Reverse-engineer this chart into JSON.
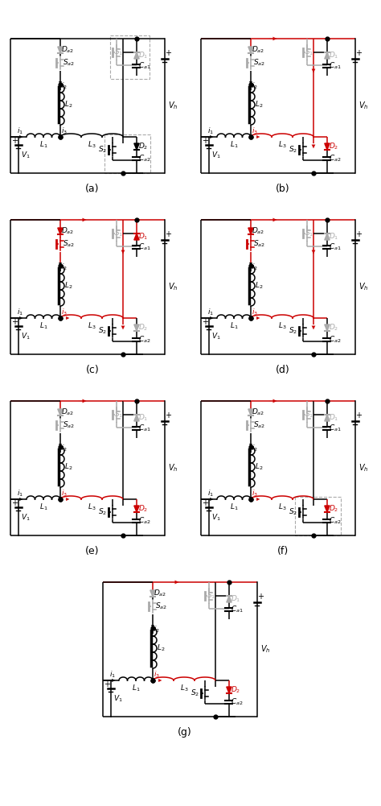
{
  "subfig_labels": [
    "(a)",
    "(b)",
    "(c)",
    "(d)",
    "(e)",
    "(f)",
    "(g)"
  ],
  "background_color": "#ffffff",
  "line_color": "#000000",
  "red_color": "#cc0000",
  "gray_color": "#aaaaaa",
  "panels": [
    {
      "ox": 5,
      "oy": 30,
      "dashed_top": true,
      "dashed_bottom": true,
      "red_top": false,
      "red_mid": false,
      "red_left_col": false,
      "red_right_col": false,
      "active_Da2": false,
      "active_Sa2": false,
      "active_D1": false,
      "active_D2": false,
      "gray_S1": true,
      "gray_D1": true,
      "gray_S2": false,
      "gray_D2": false,
      "gray_Sa2": true,
      "gray_Da2": true
    },
    {
      "ox": 242,
      "oy": 30,
      "dashed_top": false,
      "dashed_bottom": false,
      "red_top": true,
      "red_mid": true,
      "red_left_col": false,
      "red_right_col": true,
      "active_Da2": false,
      "active_Sa2": false,
      "active_D1": false,
      "active_D2": true,
      "gray_S1": true,
      "gray_D1": true,
      "gray_S2": true,
      "gray_D2": false,
      "gray_Sa2": true,
      "gray_Da2": true
    },
    {
      "ox": 5,
      "oy": 255,
      "dashed_top": false,
      "dashed_bottom": false,
      "red_top": true,
      "red_mid": true,
      "red_left_col": true,
      "red_right_col": true,
      "active_Da2": true,
      "active_Sa2": true,
      "active_D1": true,
      "active_D2": false,
      "gray_S1": true,
      "gray_D1": false,
      "gray_S2": true,
      "gray_D2": true,
      "gray_Sa2": false,
      "gray_Da2": false
    },
    {
      "ox": 242,
      "oy": 255,
      "dashed_top": false,
      "dashed_bottom": false,
      "red_top": true,
      "red_mid": true,
      "red_left_col": true,
      "red_right_col": true,
      "active_Da2": true,
      "active_Sa2": true,
      "active_D1": false,
      "active_D2": false,
      "gray_S1": true,
      "gray_D1": true,
      "gray_S2": true,
      "gray_D2": true,
      "gray_Sa2": false,
      "gray_Da2": false
    },
    {
      "ox": 5,
      "oy": 480,
      "dashed_top": false,
      "dashed_bottom": false,
      "red_top": true,
      "red_mid": true,
      "red_left_col": false,
      "red_right_col": false,
      "active_Da2": false,
      "active_Sa2": false,
      "active_D1": false,
      "active_D2": true,
      "gray_S1": true,
      "gray_D1": true,
      "gray_S2": false,
      "gray_D2": false,
      "gray_Sa2": true,
      "gray_Da2": true
    },
    {
      "ox": 242,
      "oy": 480,
      "dashed_top": false,
      "dashed_bottom": true,
      "red_top": true,
      "red_mid": true,
      "red_left_col": false,
      "red_right_col": false,
      "active_Da2": false,
      "active_Sa2": false,
      "active_D1": false,
      "active_D2": true,
      "gray_S1": true,
      "gray_D1": true,
      "gray_S2": false,
      "gray_D2": false,
      "gray_Sa2": true,
      "gray_Da2": true
    },
    {
      "ox": 120,
      "oy": 705,
      "dashed_top": false,
      "dashed_bottom": false,
      "red_top": true,
      "red_mid": true,
      "red_left_col": false,
      "red_right_col": false,
      "active_Da2": false,
      "active_Sa2": false,
      "active_D1": false,
      "active_D2": true,
      "gray_S1": true,
      "gray_D1": true,
      "gray_S2": false,
      "gray_D2": false,
      "gray_Sa2": true,
      "gray_Da2": true
    }
  ]
}
